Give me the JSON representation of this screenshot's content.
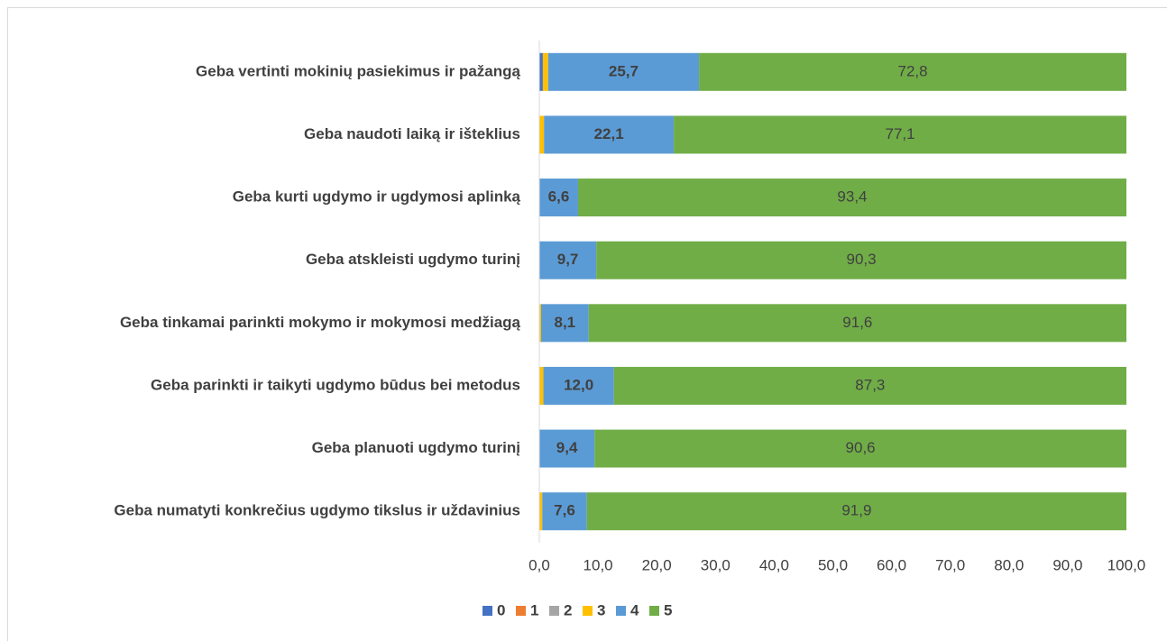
{
  "chart_data": {
    "type": "stacked_bar_horizontal",
    "categories": [
      "Geba vertinti mokinių pasiekimus ir pažangą",
      "Geba naudoti laiką ir išteklius",
      "Geba kurti ugdymo ir ugdymosi aplinką",
      "Geba atskleisti ugdymo turinį",
      "Geba tinkamai parinkti mokymo ir mokymosi medžiagą",
      "Geba parinkti ir taikyti ugdymo būdus bei metodus",
      "Geba planuoti ugdymo turinį",
      "Geba numatyti konkrečius ugdymo tikslus ir uždavinius"
    ],
    "series": [
      {
        "name": "0",
        "color": "#4472c4",
        "values": [
          0.6,
          0,
          0,
          0,
          0,
          0,
          0,
          0
        ]
      },
      {
        "name": "1",
        "color": "#ed7d31",
        "values": [
          0,
          0,
          0,
          0,
          0,
          0,
          0,
          0
        ]
      },
      {
        "name": "2",
        "color": "#a5a5a5",
        "values": [
          0,
          0,
          0,
          0,
          0,
          0,
          0,
          0
        ]
      },
      {
        "name": "3",
        "color": "#ffc000",
        "values": [
          0.9,
          0.8,
          0,
          0,
          0.3,
          0.7,
          0,
          0.5
        ]
      },
      {
        "name": "4",
        "color": "#5b9bd5",
        "values": [
          25.7,
          22.1,
          6.6,
          9.7,
          8.1,
          12.0,
          9.4,
          7.6
        ],
        "value_labels": [
          "25,7",
          "22,1",
          "6,6",
          "9,7",
          "8,1",
          "12,0",
          "9,4",
          "7,6"
        ]
      },
      {
        "name": "5",
        "color": "#70ad47",
        "values": [
          72.8,
          77.1,
          93.4,
          90.3,
          91.6,
          87.3,
          90.6,
          91.9
        ],
        "value_labels": [
          "72,8",
          "77,1",
          "93,4",
          "90,3",
          "91,6",
          "87,3",
          "90,6",
          "91,9"
        ]
      }
    ],
    "xlim": [
      0,
      100
    ],
    "xticks": [
      {
        "value": 0,
        "label": "0,0"
      },
      {
        "value": 10,
        "label": "10,0"
      },
      {
        "value": 20,
        "label": "20,0"
      },
      {
        "value": 30,
        "label": "30,0"
      },
      {
        "value": 40,
        "label": "40,0"
      },
      {
        "value": 50,
        "label": "50,0"
      },
      {
        "value": 60,
        "label": "60,0"
      },
      {
        "value": 70,
        "label": "70,0"
      },
      {
        "value": 80,
        "label": "80,0"
      },
      {
        "value": 90,
        "label": "90,0"
      },
      {
        "value": 100,
        "label": "100,0"
      }
    ],
    "legend": "bottom"
  }
}
